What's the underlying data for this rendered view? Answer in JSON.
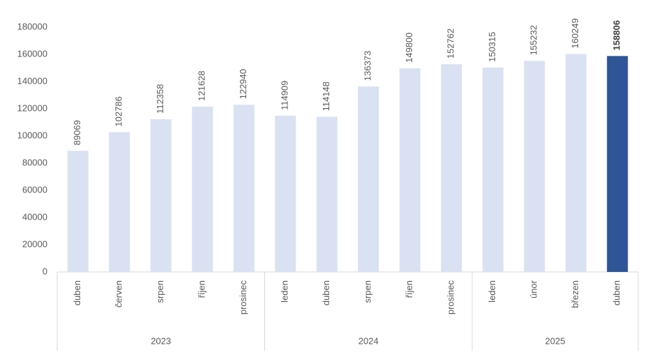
{
  "chart_data": {
    "type": "bar",
    "categories": [
      [
        "duben",
        "2023"
      ],
      [
        "červen",
        "2023"
      ],
      [
        "srpen",
        "2023"
      ],
      [
        "říjen",
        "2023"
      ],
      [
        "prosinec",
        "2023"
      ],
      [
        "leden",
        "2024"
      ],
      [
        "duben",
        "2024"
      ],
      [
        "srpen",
        "2024"
      ],
      [
        "říjen",
        "2024"
      ],
      [
        "prosinec",
        "2024"
      ],
      [
        "leden",
        "2025"
      ],
      [
        "únor",
        "2025"
      ],
      [
        "březen",
        "2025"
      ],
      [
        "duben",
        "2025"
      ]
    ],
    "values": [
      89069,
      102786,
      112358,
      121628,
      122940,
      114909,
      114148,
      136373,
      149800,
      152762,
      150315,
      155232,
      160249,
      158806
    ],
    "colors": [
      "#d9e1f2",
      "#d9e1f2",
      "#d9e1f2",
      "#d9e1f2",
      "#d9e1f2",
      "#d9e1f2",
      "#d9e1f2",
      "#d9e1f2",
      "#d9e1f2",
      "#d9e1f2",
      "#d9e1f2",
      "#d9e1f2",
      "#d9e1f2",
      "#2f5597"
    ],
    "ylim": [
      0,
      180000
    ],
    "yticks": [
      0,
      20000,
      40000,
      60000,
      80000,
      100000,
      120000,
      140000,
      160000,
      180000
    ],
    "grid": false
  }
}
